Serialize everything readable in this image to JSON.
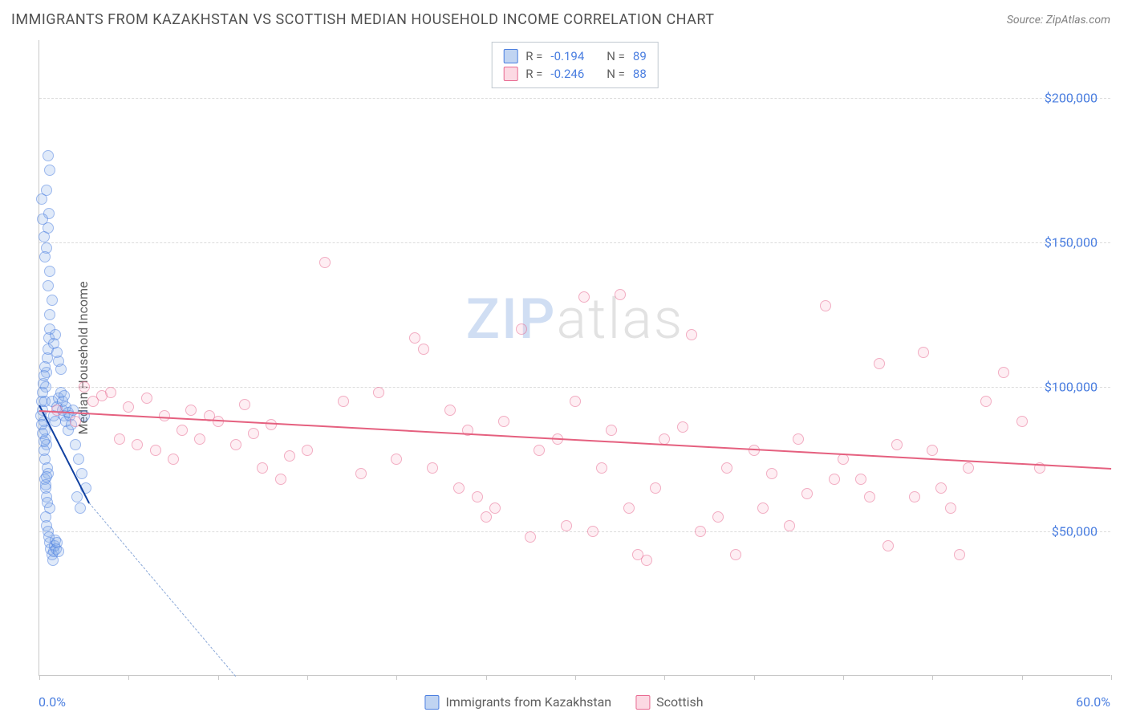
{
  "header": {
    "title": "IMMIGRANTS FROM KAZAKHSTAN VS SCOTTISH MEDIAN HOUSEHOLD INCOME CORRELATION CHART",
    "source": "Source: ZipAtlas.com"
  },
  "chart": {
    "type": "scatter",
    "ylabel": "Median Household Income",
    "xlim": [
      0,
      60
    ],
    "ylim": [
      0,
      220000
    ],
    "yticks": [
      50000,
      100000,
      150000,
      200000
    ],
    "ytick_labels": [
      "$50,000",
      "$100,000",
      "$150,000",
      "$200,000"
    ],
    "xtick_positions": [
      0,
      5,
      10,
      15,
      20,
      25,
      30,
      35,
      40,
      45,
      50,
      55,
      60
    ],
    "xaxis_start_label": "0.0%",
    "xaxis_end_label": "60.0%",
    "grid_color": "#dcdcdc",
    "background_color": "#ffffff",
    "axis_color": "#c8c8c8",
    "ylabel_color": "#4a7ee0",
    "series": [
      {
        "name": "Immigrants from Kazakhstan",
        "fill_color": "rgba(130,170,230,0.45)",
        "stroke_color": "#4a7ee0",
        "R": "-0.194",
        "N": "89",
        "trend": {
          "x1": 0,
          "y1": 94000,
          "x2": 2.8,
          "y2": 60000,
          "dash_x2": 11,
          "dash_y2": 0
        },
        "points": [
          {
            "x": 0.2,
            "y": 92000
          },
          {
            "x": 0.25,
            "y": 88000
          },
          {
            "x": 0.3,
            "y": 95000
          },
          {
            "x": 0.35,
            "y": 100000
          },
          {
            "x": 0.4,
            "y": 105000
          },
          {
            "x": 0.45,
            "y": 110000
          },
          {
            "x": 0.5,
            "y": 113000
          },
          {
            "x": 0.55,
            "y": 117000
          },
          {
            "x": 0.6,
            "y": 120000
          },
          {
            "x": 0.3,
            "y": 85000
          },
          {
            "x": 0.35,
            "y": 82000
          },
          {
            "x": 0.4,
            "y": 80000
          },
          {
            "x": 0.25,
            "y": 78000
          },
          {
            "x": 0.3,
            "y": 75000
          },
          {
            "x": 0.45,
            "y": 72000
          },
          {
            "x": 0.5,
            "y": 70000
          },
          {
            "x": 0.3,
            "y": 68000
          },
          {
            "x": 0.35,
            "y": 65000
          },
          {
            "x": 0.4,
            "y": 62000
          },
          {
            "x": 0.45,
            "y": 60000
          },
          {
            "x": 0.6,
            "y": 58000
          },
          {
            "x": 0.7,
            "y": 95000
          },
          {
            "x": 0.8,
            "y": 90000
          },
          {
            "x": 0.9,
            "y": 88000
          },
          {
            "x": 1.0,
            "y": 93000
          },
          {
            "x": 1.1,
            "y": 96000
          },
          {
            "x": 1.2,
            "y": 98000
          },
          {
            "x": 1.3,
            "y": 92000
          },
          {
            "x": 1.4,
            "y": 90000
          },
          {
            "x": 0.6,
            "y": 125000
          },
          {
            "x": 0.7,
            "y": 130000
          },
          {
            "x": 0.5,
            "y": 135000
          },
          {
            "x": 0.6,
            "y": 140000
          },
          {
            "x": 0.4,
            "y": 148000
          },
          {
            "x": 0.5,
            "y": 155000
          },
          {
            "x": 0.55,
            "y": 160000
          },
          {
            "x": 0.4,
            "y": 168000
          },
          {
            "x": 0.6,
            "y": 175000
          },
          {
            "x": 0.5,
            "y": 180000
          },
          {
            "x": 0.1,
            "y": 90000
          },
          {
            "x": 0.15,
            "y": 87000
          },
          {
            "x": 0.2,
            "y": 84000
          },
          {
            "x": 0.25,
            "y": 81000
          },
          {
            "x": 0.12,
            "y": 95000
          },
          {
            "x": 0.18,
            "y": 98000
          },
          {
            "x": 0.22,
            "y": 101000
          },
          {
            "x": 0.28,
            "y": 104000
          },
          {
            "x": 0.32,
            "y": 107000
          },
          {
            "x": 0.38,
            "y": 55000
          },
          {
            "x": 0.42,
            "y": 52000
          },
          {
            "x": 0.48,
            "y": 50000
          },
          {
            "x": 0.55,
            "y": 48000
          },
          {
            "x": 0.6,
            "y": 46000
          },
          {
            "x": 0.65,
            "y": 44000
          },
          {
            "x": 0.7,
            "y": 42000
          },
          {
            "x": 0.75,
            "y": 40000
          },
          {
            "x": 0.8,
            "y": 43000
          },
          {
            "x": 0.85,
            "y": 45000
          },
          {
            "x": 0.9,
            "y": 47000
          },
          {
            "x": 0.95,
            "y": 44000
          },
          {
            "x": 1.0,
            "y": 46000
          },
          {
            "x": 1.1,
            "y": 43000
          },
          {
            "x": 1.5,
            "y": 88000
          },
          {
            "x": 1.6,
            "y": 85000
          },
          {
            "x": 1.7,
            "y": 90000
          },
          {
            "x": 1.8,
            "y": 87000
          },
          {
            "x": 1.9,
            "y": 92000
          },
          {
            "x": 2.0,
            "y": 80000
          },
          {
            "x": 2.2,
            "y": 75000
          },
          {
            "x": 2.4,
            "y": 70000
          },
          {
            "x": 2.6,
            "y": 65000
          },
          {
            "x": 2.1,
            "y": 62000
          },
          {
            "x": 2.3,
            "y": 58000
          },
          {
            "x": 0.8,
            "y": 115000
          },
          {
            "x": 0.9,
            "y": 118000
          },
          {
            "x": 1.0,
            "y": 112000
          },
          {
            "x": 1.1,
            "y": 109000
          },
          {
            "x": 1.2,
            "y": 106000
          },
          {
            "x": 0.15,
            "y": 165000
          },
          {
            "x": 0.2,
            "y": 158000
          },
          {
            "x": 0.3,
            "y": 145000
          },
          {
            "x": 0.25,
            "y": 152000
          },
          {
            "x": 0.35,
            "y": 66000
          },
          {
            "x": 0.4,
            "y": 69000
          },
          {
            "x": 1.3,
            "y": 95000
          },
          {
            "x": 1.4,
            "y": 97000
          },
          {
            "x": 1.5,
            "y": 93000
          },
          {
            "x": 1.6,
            "y": 91000
          },
          {
            "x": 2.5,
            "y": 90000
          }
        ]
      },
      {
        "name": "Scottish",
        "fill_color": "rgba(250,180,200,0.4)",
        "stroke_color": "#e86a91",
        "R": "-0.246",
        "N": "88",
        "trend": {
          "x1": 0,
          "y1": 92000,
          "x2": 60,
          "y2": 72000
        },
        "points": [
          {
            "x": 1,
            "y": 92000
          },
          {
            "x": 2,
            "y": 88000
          },
          {
            "x": 3,
            "y": 95000
          },
          {
            "x": 4,
            "y": 98000
          },
          {
            "x": 5,
            "y": 93000
          },
          {
            "x": 6,
            "y": 96000
          },
          {
            "x": 7,
            "y": 90000
          },
          {
            "x": 8,
            "y": 85000
          },
          {
            "x": 9,
            "y": 82000
          },
          {
            "x": 10,
            "y": 88000
          },
          {
            "x": 11,
            "y": 80000
          },
          {
            "x": 12,
            "y": 84000
          },
          {
            "x": 13,
            "y": 87000
          },
          {
            "x": 14,
            "y": 76000
          },
          {
            "x": 15,
            "y": 78000
          },
          {
            "x": 16,
            "y": 143000
          },
          {
            "x": 17,
            "y": 95000
          },
          {
            "x": 18,
            "y": 70000
          },
          {
            "x": 19,
            "y": 98000
          },
          {
            "x": 20,
            "y": 75000
          },
          {
            "x": 21,
            "y": 117000
          },
          {
            "x": 21.5,
            "y": 113000
          },
          {
            "x": 22,
            "y": 72000
          },
          {
            "x": 23,
            "y": 92000
          },
          {
            "x": 24,
            "y": 85000
          },
          {
            "x": 25,
            "y": 55000
          },
          {
            "x": 26,
            "y": 88000
          },
          {
            "x": 27,
            "y": 120000
          },
          {
            "x": 28,
            "y": 78000
          },
          {
            "x": 29,
            "y": 82000
          },
          {
            "x": 30,
            "y": 95000
          },
          {
            "x": 30.5,
            "y": 131000
          },
          {
            "x": 31,
            "y": 50000
          },
          {
            "x": 32,
            "y": 85000
          },
          {
            "x": 32.5,
            "y": 132000
          },
          {
            "x": 33,
            "y": 58000
          },
          {
            "x": 34,
            "y": 40000
          },
          {
            "x": 35,
            "y": 82000
          },
          {
            "x": 36,
            "y": 86000
          },
          {
            "x": 36.5,
            "y": 118000
          },
          {
            "x": 37,
            "y": 50000
          },
          {
            "x": 38,
            "y": 55000
          },
          {
            "x": 39,
            "y": 42000
          },
          {
            "x": 40,
            "y": 78000
          },
          {
            "x": 41,
            "y": 70000
          },
          {
            "x": 42,
            "y": 52000
          },
          {
            "x": 43,
            "y": 63000
          },
          {
            "x": 44,
            "y": 128000
          },
          {
            "x": 45,
            "y": 75000
          },
          {
            "x": 46,
            "y": 68000
          },
          {
            "x": 47,
            "y": 108000
          },
          {
            "x": 47.5,
            "y": 45000
          },
          {
            "x": 48,
            "y": 80000
          },
          {
            "x": 49,
            "y": 62000
          },
          {
            "x": 49.5,
            "y": 112000
          },
          {
            "x": 50,
            "y": 78000
          },
          {
            "x": 51,
            "y": 58000
          },
          {
            "x": 51.5,
            "y": 42000
          },
          {
            "x": 52,
            "y": 72000
          },
          {
            "x": 53,
            "y": 95000
          },
          {
            "x": 54,
            "y": 105000
          },
          {
            "x": 55,
            "y": 88000
          },
          {
            "x": 56,
            "y": 72000
          },
          {
            "x": 4.5,
            "y": 82000
          },
          {
            "x": 5.5,
            "y": 80000
          },
          {
            "x": 6.5,
            "y": 78000
          },
          {
            "x": 7.5,
            "y": 75000
          },
          {
            "x": 2.5,
            "y": 100000
          },
          {
            "x": 3.5,
            "y": 97000
          },
          {
            "x": 8.5,
            "y": 92000
          },
          {
            "x": 9.5,
            "y": 90000
          },
          {
            "x": 11.5,
            "y": 94000
          },
          {
            "x": 12.5,
            "y": 72000
          },
          {
            "x": 13.5,
            "y": 68000
          },
          {
            "x": 23.5,
            "y": 65000
          },
          {
            "x": 24.5,
            "y": 62000
          },
          {
            "x": 25.5,
            "y": 58000
          },
          {
            "x": 27.5,
            "y": 48000
          },
          {
            "x": 29.5,
            "y": 52000
          },
          {
            "x": 31.5,
            "y": 72000
          },
          {
            "x": 33.5,
            "y": 42000
          },
          {
            "x": 34.5,
            "y": 65000
          },
          {
            "x": 38.5,
            "y": 72000
          },
          {
            "x": 40.5,
            "y": 58000
          },
          {
            "x": 42.5,
            "y": 82000
          },
          {
            "x": 44.5,
            "y": 68000
          },
          {
            "x": 46.5,
            "y": 62000
          },
          {
            "x": 50.5,
            "y": 65000
          }
        ]
      }
    ]
  },
  "legend_top": {
    "rows": [
      {
        "swatch": "blue",
        "R_label": "R =",
        "R_val": "-0.194",
        "N_label": "N =",
        "N_val": "89"
      },
      {
        "swatch": "pink",
        "R_label": "R =",
        "R_val": "-0.246",
        "N_label": "N =",
        "N_val": "88"
      }
    ]
  },
  "legend_bottom": [
    {
      "swatch": "blue",
      "label": "Immigrants from Kazakhstan"
    },
    {
      "swatch": "pink",
      "label": "Scottish"
    }
  ],
  "watermark": {
    "part1": "ZIP",
    "part2": "atlas"
  }
}
